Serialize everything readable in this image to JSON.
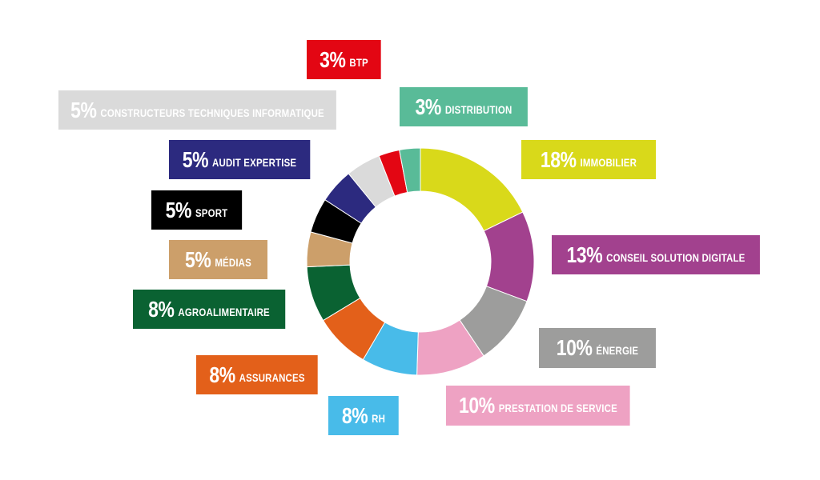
{
  "chart_data": {
    "type": "pie",
    "style": "donut",
    "slices": [
      {
        "label": "IMMOBILIER",
        "percent_text": "18%",
        "value": 18,
        "color": "#d9d91a",
        "text_color": "#ffffff"
      },
      {
        "label": "CONSEIL SOLUTION DIGITALE",
        "percent_text": "13%",
        "value": 13,
        "color": "#a2418e",
        "text_color": "#ffffff"
      },
      {
        "label": "ÉNERGIE",
        "percent_text": "10%",
        "value": 10,
        "color": "#9d9d9c",
        "text_color": "#ffffff"
      },
      {
        "label": "PRESTATION DE SERVICE",
        "percent_text": "10%",
        "value": 10,
        "color": "#eea2c3",
        "text_color": "#ffffff"
      },
      {
        "label": "RH",
        "percent_text": "8%",
        "value": 8,
        "color": "#48bbe9",
        "text_color": "#ffffff"
      },
      {
        "label": "ASSURANCES",
        "percent_text": "8%",
        "value": 8,
        "color": "#e3601a",
        "text_color": "#ffffff"
      },
      {
        "label": "AGROALIMENTAIRE",
        "percent_text": "8%",
        "value": 8,
        "color": "#0a6232",
        "text_color": "#ffffff"
      },
      {
        "label": "MÉDIAS",
        "percent_text": "5%",
        "value": 5,
        "color": "#cc9f6a",
        "text_color": "#ffffff"
      },
      {
        "label": "SPORT",
        "percent_text": "5%",
        "value": 5,
        "color": "#000000",
        "text_color": "#ffffff"
      },
      {
        "label": "AUDIT EXPERTISE",
        "percent_text": "5%",
        "value": 5,
        "color": "#2c2a7f",
        "text_color": "#ffffff"
      },
      {
        "label": "CONSTRUCTEURS TECHNIQUES INFORMATIQUE",
        "percent_text": "5%",
        "value": 5,
        "color": "#dadada",
        "text_color": "#ffffff"
      },
      {
        "label": "BTP",
        "percent_text": "3%",
        "value": 3,
        "color": "#e30613",
        "text_color": "#ffffff"
      },
      {
        "label": "DISTRIBUTION",
        "percent_text": "3%",
        "value": 3,
        "color": "#59bb98",
        "text_color": "#ffffff"
      }
    ]
  }
}
